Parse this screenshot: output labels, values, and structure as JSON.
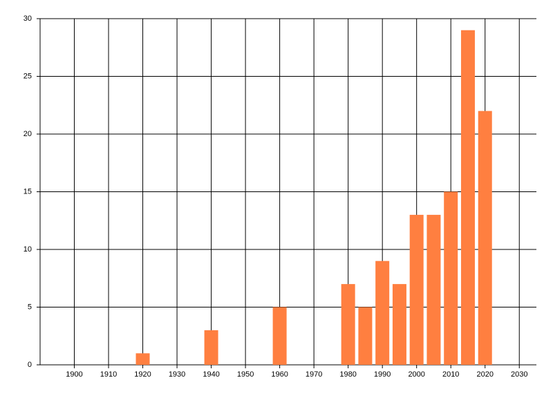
{
  "chart_data": {
    "type": "bar",
    "x": [
      1920,
      1940,
      1960,
      1980,
      1985,
      1990,
      1995,
      2000,
      2005,
      2010,
      2015,
      2020
    ],
    "values": [
      1,
      3,
      5,
      7,
      5,
      9,
      7,
      13,
      13,
      15,
      29,
      22
    ],
    "color": "#ff7f40",
    "xlim": [
      1890,
      2035
    ],
    "xticks": [
      1900,
      1910,
      1920,
      1930,
      1940,
      1950,
      1960,
      1970,
      1980,
      1990,
      2000,
      2010,
      2020,
      2030
    ],
    "ylim": [
      0,
      30
    ],
    "yticks": [
      0,
      5,
      10,
      15,
      20,
      25,
      30
    ],
    "grid": true
  }
}
